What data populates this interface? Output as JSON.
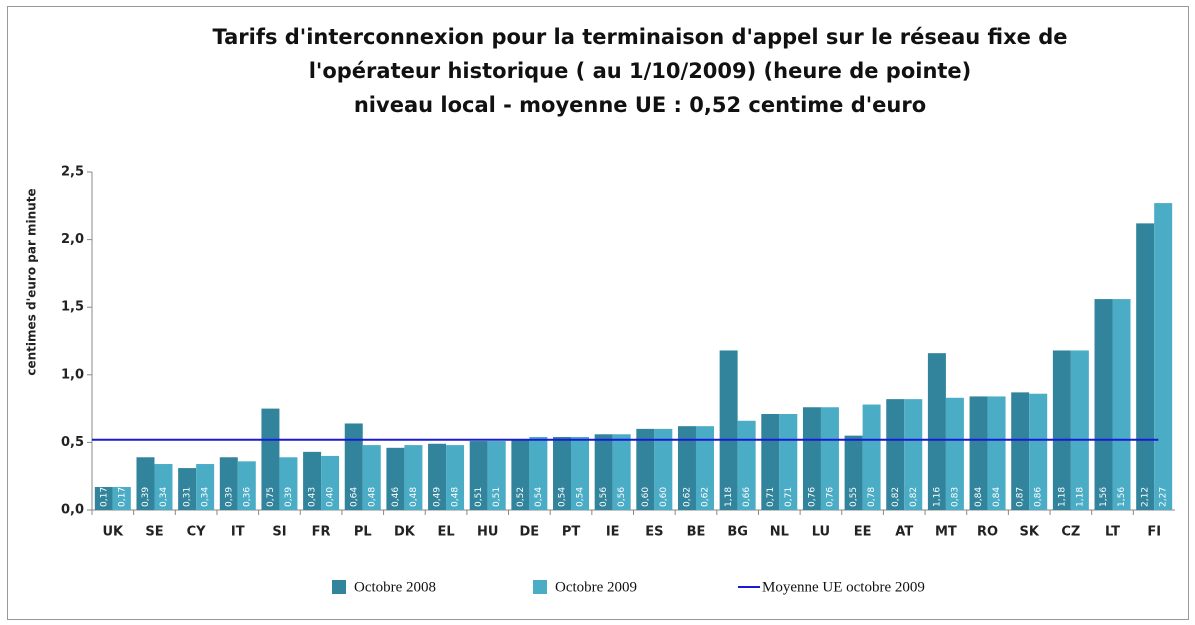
{
  "chart_data": {
    "type": "bar",
    "title": [
      "Tarifs d'interconnexion pour la terminaison d'appel sur le réseau fixe de",
      "l'opérateur historique ( au 1/10/2009) (heure de pointe)",
      "niveau local - moyenne UE : 0,52 centime d'euro"
    ],
    "ylabel": "centimes d'euro par minute",
    "categories": [
      "UK",
      "SE",
      "CY",
      "IT",
      "SI",
      "FR",
      "PL",
      "DK",
      "EL",
      "HU",
      "DE",
      "PT",
      "IE",
      "ES",
      "BE",
      "BG",
      "NL",
      "LU",
      "EE",
      "AT",
      "MT",
      "RO",
      "SK",
      "CZ",
      "LT",
      "FI"
    ],
    "series": [
      {
        "name": "Octobre 2008",
        "color": "#31849b",
        "values": [
          0.17,
          0.39,
          0.31,
          0.39,
          0.75,
          0.43,
          0.64,
          0.46,
          0.49,
          0.51,
          0.52,
          0.54,
          0.56,
          0.6,
          0.62,
          1.18,
          0.71,
          0.76,
          0.55,
          0.82,
          1.16,
          0.84,
          0.87,
          1.18,
          1.56,
          2.12
        ],
        "value_labels": [
          "0,17",
          "0,39",
          "0,31",
          "0,39",
          "0,75",
          "0,43",
          "0,64",
          "0,46",
          "0,49",
          "0,51",
          "0,52",
          "0,54",
          "0,56",
          "0,60",
          "0,62",
          "1,18",
          "0,71",
          "0,76",
          "0,55",
          "0,82",
          "1,16",
          "0,84",
          "0,87",
          "1,18",
          "1,56",
          "2,12"
        ]
      },
      {
        "name": "Octobre 2009",
        "color": "#4bacc6",
        "values": [
          0.17,
          0.34,
          0.34,
          0.36,
          0.39,
          0.4,
          0.48,
          0.48,
          0.48,
          0.51,
          0.54,
          0.54,
          0.56,
          0.6,
          0.62,
          0.66,
          0.71,
          0.76,
          0.78,
          0.82,
          0.83,
          0.84,
          0.86,
          1.18,
          1.56,
          2.27
        ],
        "value_labels": [
          "0,17",
          "0,34",
          "0,34",
          "0,36",
          "0,39",
          "0,40",
          "0,48",
          "0,48",
          "0,48",
          "0,51",
          "0,54",
          "0,54",
          "0,56",
          "0,60",
          "0,62",
          "0,66",
          "0,71",
          "0,76",
          "0,78",
          "0,82",
          "0,83",
          "0,84",
          "0,86",
          "1,18",
          "1,56",
          "2,27"
        ]
      }
    ],
    "average": {
      "name": "Moyenne UE octobre 2009",
      "color": "#1a1ad6",
      "value": 0.52
    },
    "ylim": [
      0,
      2.5
    ],
    "yticks": [
      {
        "value": 0,
        "label": "0,0"
      },
      {
        "value": 0.5,
        "label": "0,5"
      },
      {
        "value": 1,
        "label": "1,0"
      },
      {
        "value": 1.5,
        "label": "1,5"
      },
      {
        "value": 2,
        "label": "2,0"
      },
      {
        "value": 2.5,
        "label": "2,5"
      }
    ],
    "grid": false
  }
}
